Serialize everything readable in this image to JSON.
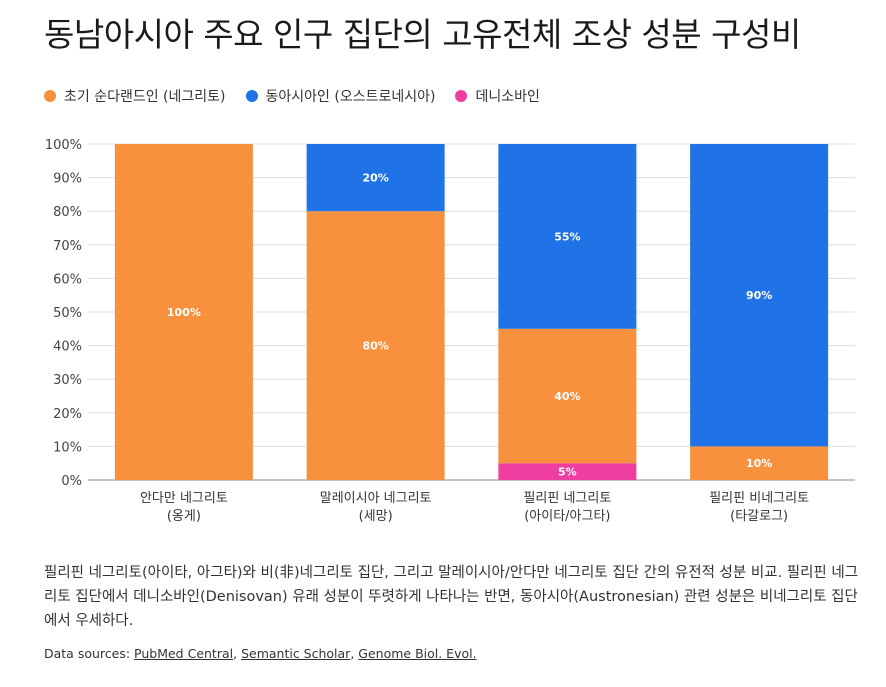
{
  "title": "동남아시아 주요 인구 집단의 고유전체 조상 성분 구성비",
  "legend": [
    {
      "label": "초기 순다랜드인 (네그리토)",
      "color": "#f7913d"
    },
    {
      "label": "동아시아인 (오스트로네시아)",
      "color": "#1f73e6"
    },
    {
      "label": "데니소바인",
      "color": "#ee3ea0"
    }
  ],
  "chart_data": {
    "type": "bar",
    "stacked": true,
    "categories": [
      [
        "안다만 네그리토",
        "(옹게)"
      ],
      [
        "말레이시아 네그리토",
        "(세망)"
      ],
      [
        "필리핀 네그리토",
        "(아이타/아그타)"
      ],
      [
        "필리핀 비네그리토",
        "(타갈로그)"
      ]
    ],
    "series": [
      {
        "name": "데니소바인",
        "color": "#ee3ea0",
        "values": [
          0,
          0,
          5,
          0
        ]
      },
      {
        "name": "초기 순다랜드인 (네그리토)",
        "color": "#f7913d",
        "values": [
          100,
          80,
          40,
          10
        ]
      },
      {
        "name": "동아시아인 (오스트로네시아)",
        "color": "#1f73e6",
        "values": [
          0,
          20,
          55,
          90
        ]
      }
    ],
    "data_labels": [
      [
        "",
        "100%",
        ""
      ],
      [
        "",
        "80%",
        "20%"
      ],
      [
        "5%",
        "40%",
        "55%"
      ],
      [
        "",
        "10%",
        "90%"
      ]
    ],
    "y_ticks": [
      "0%",
      "10%",
      "20%",
      "30%",
      "40%",
      "50%",
      "60%",
      "70%",
      "80%",
      "90%",
      "100%"
    ],
    "ylim": [
      0,
      100
    ],
    "grid": true
  },
  "caption": "필리핀 네그리토(아이타, 아그타)와 비(非)네그리토 집단, 그리고 말레이시아/안다만 네그리토 집단 간의 유전적 성분 비교. 필리핀 네그리토 집단에서 데니소바인(Denisovan) 유래 성분이 뚜렷하게 나타나는 반면, 동아시아(Austronesian) 관련 성분은 비네그리토 집단에서 우세하다.",
  "sources": {
    "prefix": "Data sources: ",
    "links": [
      "PubMed Central",
      "Semantic Scholar",
      "Genome Biol. Evol."
    ],
    "separator": ", "
  }
}
